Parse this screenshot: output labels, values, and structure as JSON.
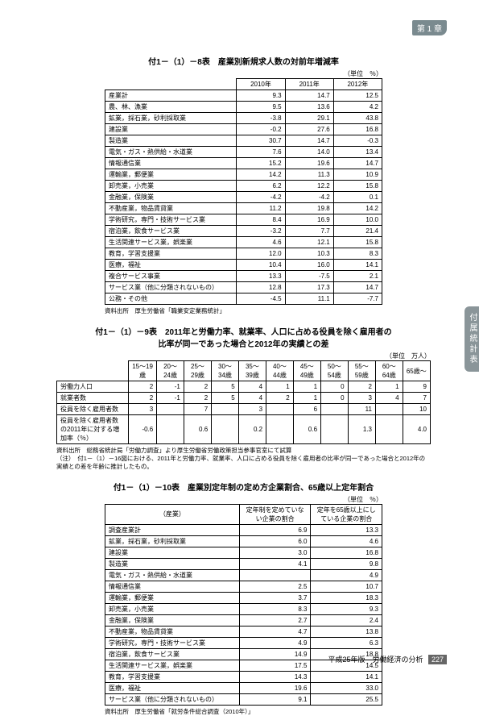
{
  "chapter_tag": "第 1 章",
  "side_tab": "付属統計表",
  "footer": {
    "edition": "平成25年版　労働経済の分析",
    "page": "227"
  },
  "table1": {
    "title": "付1－（1）－8表　産業別新規求人数の対前年増減率",
    "unit": "（単位　％）",
    "years": [
      "2010年",
      "2011年",
      "2012年"
    ],
    "rows": [
      [
        "産業計",
        "9.3",
        "14.7",
        "12.5"
      ],
      [
        "農、林、漁業",
        "9.5",
        "13.6",
        "4.2"
      ],
      [
        "鉱業，採石業，砂利採取業",
        "-3.8",
        "29.1",
        "43.8"
      ],
      [
        "建設業",
        "-0.2",
        "27.6",
        "16.8"
      ],
      [
        "製造業",
        "30.7",
        "14.7",
        "-0.3"
      ],
      [
        "電気・ガス・熱供給・水道業",
        "7.6",
        "14.0",
        "13.4"
      ],
      [
        "情報通信業",
        "15.2",
        "19.6",
        "14.7"
      ],
      [
        "運輸業，郵便業",
        "14.2",
        "11.3",
        "10.9"
      ],
      [
        "卸売業，小売業",
        "6.2",
        "12.2",
        "15.8"
      ],
      [
        "金融業，保険業",
        "-4.2",
        "-4.2",
        "0.1"
      ],
      [
        "不動産業，物品賃貸業",
        "11.2",
        "19.8",
        "14.2"
      ],
      [
        "学術研究，専門・技術サービス業",
        "8.4",
        "16.9",
        "10.0"
      ],
      [
        "宿泊業，飲食サービス業",
        "-3.2",
        "7.7",
        "21.4"
      ],
      [
        "生活関連サービス業，娯楽業",
        "4.6",
        "12.1",
        "15.8"
      ],
      [
        "教育，学習支援業",
        "12.0",
        "10.3",
        "8.3"
      ],
      [
        "医療，福祉",
        "10.4",
        "16.0",
        "14.1"
      ],
      [
        "複合サービス事業",
        "13.3",
        "-7.5",
        "2.1"
      ],
      [
        "サービス業（他に分類されないもの）",
        "12.8",
        "17.3",
        "14.7"
      ],
      [
        "公務・その他",
        "-4.5",
        "11.1",
        "-7.7"
      ]
    ],
    "source": "資料出所　厚生労働省「職業安定業務統計」"
  },
  "table2": {
    "title": "付1－（1）－9表　2011年と労働力率、就業率、人口に占める役員を除く雇用者の\n比率が同一であった場合と2012年の実績との差",
    "unit": "（単位　万人）",
    "cols": [
      "15～19歳",
      "20～24歳",
      "25～29歳",
      "30～34歳",
      "35～39歳",
      "40～44歳",
      "45～49歳",
      "50～54歳",
      "55～59歳",
      "60～64歳",
      "65歳～"
    ],
    "rows": [
      [
        "労働力人口",
        "2",
        "-1",
        "2",
        "5",
        "4",
        "1",
        "1",
        "0",
        "2",
        "1",
        "9"
      ],
      [
        "就業者数",
        "2",
        "-1",
        "2",
        "5",
        "4",
        "2",
        "1",
        "0",
        "3",
        "4",
        "7"
      ],
      [
        "役員を除く雇用者数",
        "3",
        "",
        "7",
        "",
        "3",
        "",
        "6",
        "",
        "11",
        "",
        "10"
      ],
      [
        "役員を除く雇用者数の2011年に対する増加率（％）",
        "-0.6",
        "",
        "0.6",
        "",
        "0.2",
        "",
        "0.6",
        "",
        "1.3",
        "",
        "4.0"
      ]
    ],
    "source": "資料出所　総務省統計局「労働力調査」より厚生労働省労働政策担当参事官室にて試算",
    "note": "（注）　付1－（1）－16図における、2011年と労働力率、就業率、人口に占める役員を除く雇用者の比率が同一であった場合と2012年の実績との差を年齢に推計したもの。"
  },
  "table3": {
    "title": "付1－（1）－10表　産業別定年制の定め方企業割合、65歳以上定年割合",
    "unit": "（単位　％）",
    "head": [
      "（産業）",
      "定年制を定めていない企業の割合",
      "定年を65歳以上にしている企業の割合"
    ],
    "rows": [
      [
        "調査産業計",
        "6.9",
        "13.3"
      ],
      [
        "鉱業，採石業，砂利採取業",
        "6.0",
        "4.6"
      ],
      [
        "建設業",
        "3.0",
        "16.8"
      ],
      [
        "製造業",
        "4.1",
        "9.8"
      ],
      [
        "電気・ガス・熱供給・水道業",
        "",
        "4.9"
      ],
      [
        "情報通信業",
        "2.5",
        "10.7"
      ],
      [
        "運輸業，郵便業",
        "3.7",
        "18.3"
      ],
      [
        "卸売業，小売業",
        "8.3",
        "9.3"
      ],
      [
        "金融業，保険業",
        "2.7",
        "2.4"
      ],
      [
        "不動産業，物品賃貸業",
        "4.7",
        "13.8"
      ],
      [
        "学術研究，専門・技術サービス業",
        "4.9",
        "6.3"
      ],
      [
        "宿泊業，飲食サービス業",
        "14.9",
        "18.8"
      ],
      [
        "生活関連サービス業，娯楽業",
        "17.5",
        "14.5"
      ],
      [
        "教育，学習支援業",
        "14.3",
        "14.1"
      ],
      [
        "医療，福祉",
        "19.6",
        "33.0"
      ],
      [
        "サービス業（他に分類されないもの）",
        "9.1",
        "25.5"
      ]
    ],
    "source": "資料出所　厚生労働省「就労条件総合調査（2010年）」"
  }
}
